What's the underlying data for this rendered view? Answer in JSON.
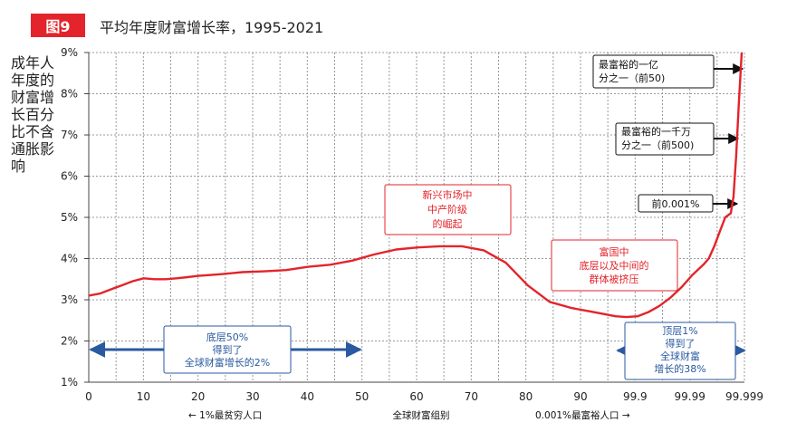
{
  "figure": {
    "badge": "图9",
    "title": "平均年度财富增长率，1995-2021"
  },
  "chart_data": {
    "type": "line",
    "ylabel": "成年人年度的财富增长百分比不含通胀影响",
    "y_ticks": [
      "1%",
      "2%",
      "3%",
      "4%",
      "5%",
      "6%",
      "7%",
      "8%",
      "9%"
    ],
    "ylim": [
      1,
      9
    ],
    "x_ticks": [
      "0",
      "10",
      "20",
      "30",
      "40",
      "50",
      "60",
      "70",
      "80",
      "90",
      "99.9",
      "99.99",
      "99.999"
    ],
    "x_title": "全球财富组别",
    "x_left_note": "← 1%最贫穷人口",
    "x_right_note": "0.001%最富裕人口  →",
    "grid": true,
    "series": [
      {
        "color": "#e3242b",
        "points": [
          [
            0,
            3.1
          ],
          [
            2,
            3.15
          ],
          [
            4,
            3.25
          ],
          [
            6,
            3.35
          ],
          [
            8,
            3.45
          ],
          [
            10,
            3.52
          ],
          [
            12,
            3.5
          ],
          [
            14,
            3.5
          ],
          [
            16,
            3.52
          ],
          [
            18,
            3.55
          ],
          [
            20,
            3.58
          ],
          [
            24,
            3.62
          ],
          [
            28,
            3.67
          ],
          [
            32,
            3.69
          ],
          [
            36,
            3.72
          ],
          [
            40,
            3.8
          ],
          [
            44,
            3.85
          ],
          [
            48,
            3.95
          ],
          [
            52,
            4.1
          ],
          [
            56,
            4.22
          ],
          [
            60,
            4.27
          ],
          [
            64,
            4.3
          ],
          [
            68,
            4.3
          ],
          [
            72,
            4.2
          ],
          [
            76,
            3.9
          ],
          [
            80,
            3.35
          ],
          [
            84,
            2.95
          ],
          [
            88,
            2.8
          ],
          [
            92,
            2.7
          ],
          [
            96,
            2.6
          ],
          [
            98,
            2.58
          ],
          [
            100,
            2.6
          ],
          [
            102,
            2.7
          ],
          [
            104,
            2.85
          ],
          [
            106,
            3.05
          ],
          [
            108,
            3.3
          ],
          [
            110,
            3.6
          ],
          [
            112,
            3.85
          ],
          [
            113,
            4.0
          ],
          [
            114,
            4.3
          ],
          [
            115,
            4.65
          ],
          [
            116,
            5.0
          ],
          [
            117,
            5.1
          ],
          [
            117.5,
            5.5
          ],
          [
            118,
            6.5
          ],
          [
            118.5,
            7.8
          ],
          [
            119,
            9.0
          ]
        ]
      }
    ]
  },
  "annotations": {
    "emerging": [
      "新兴市场中",
      "中产阶级",
      "的崛起"
    ],
    "rich_countries": [
      "富国中",
      "底层以及中间的",
      "群体被挤压"
    ],
    "bottom50": [
      "底层50%",
      "得到了",
      "全球财富增长的2%"
    ],
    "top1": [
      "顶层1%",
      "得到了",
      "全球财富",
      "增长的38%"
    ],
    "top_billionth": [
      "最富裕的一亿",
      "分之一（前50)"
    ],
    "top_ten_millionth": [
      "最富裕的一千万",
      "分之一（前500)"
    ],
    "top_0001": "前0.001%"
  }
}
